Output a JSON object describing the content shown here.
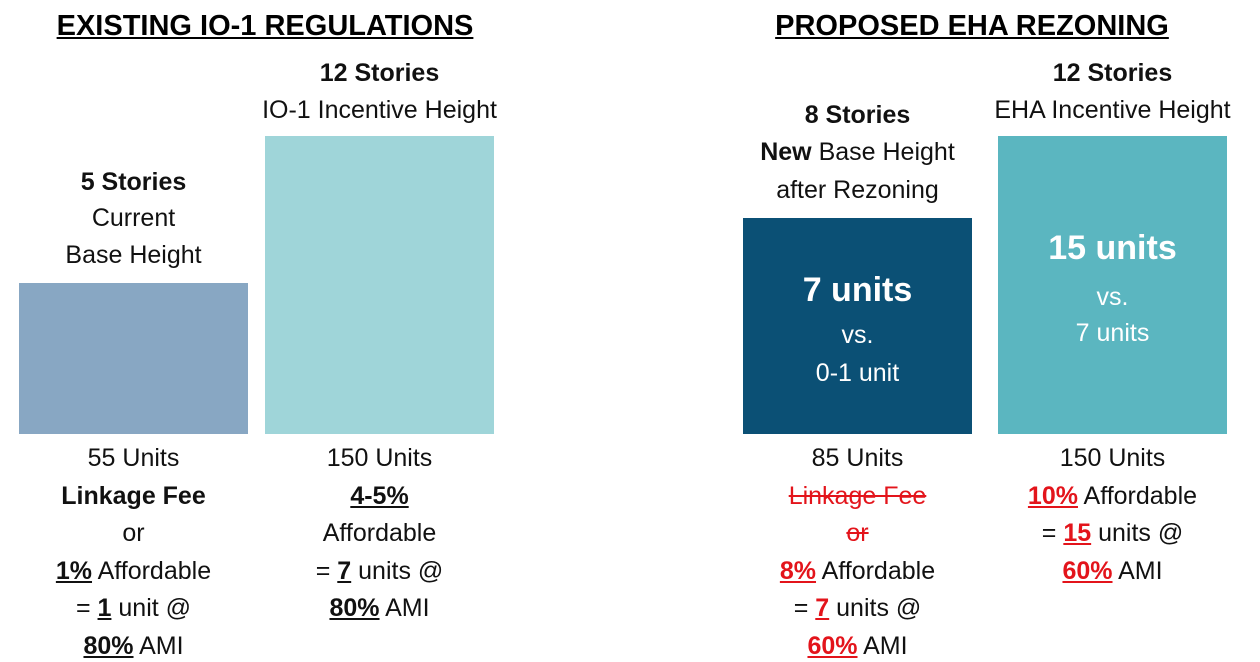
{
  "sections": [
    {
      "title": "EXISTING IO-1 REGULATIONS",
      "columns": [
        {
          "header": [
            [
              {
                "text": "5 Stories",
                "bold": true
              }
            ],
            [
              {
                "text": "Current"
              }
            ],
            [
              {
                "text": "Base Height"
              }
            ]
          ],
          "bar_text": [],
          "footer": [
            [
              {
                "text": "55 Units"
              }
            ],
            [
              {
                "text": "Linkage Fee",
                "bold": true
              }
            ],
            [
              {
                "text": "or"
              }
            ],
            [
              {
                "text": "1%",
                "bold": true,
                "underline": true
              },
              {
                "text": " Affordable"
              }
            ],
            [
              {
                "text": "= "
              },
              {
                "text": "1",
                "bold": true,
                "underline": true
              },
              {
                "text": " unit @"
              }
            ],
            [
              {
                "text": "80%",
                "bold": true,
                "underline": true
              },
              {
                "text": " AMI"
              }
            ]
          ]
        },
        {
          "header": [
            [
              {
                "text": "12 Stories",
                "bold": true
              }
            ],
            [
              {
                "text": "IO-1 Incentive Height"
              }
            ]
          ],
          "bar_text": [],
          "footer": [
            [
              {
                "text": "150 Units"
              }
            ],
            [
              {
                "text": "4-5%",
                "bold": true,
                "underline": true
              }
            ],
            [
              {
                "text": "Affordable"
              }
            ],
            [
              {
                "text": "= "
              },
              {
                "text": "7",
                "bold": true,
                "underline": true
              },
              {
                "text": " units @"
              }
            ],
            [
              {
                "text": "80%",
                "bold": true,
                "underline": true
              },
              {
                "text": " AMI"
              }
            ]
          ]
        }
      ]
    },
    {
      "title": "PROPOSED EHA REZONING",
      "columns": [
        {
          "header": [
            [
              {
                "text": "8 Stories",
                "bold": true
              }
            ],
            [
              {
                "text": "New",
                "bold": true
              },
              {
                "text": " Base Height"
              }
            ],
            [
              {
                "text": "after Rezoning"
              }
            ]
          ],
          "bar_text": [
            [
              {
                "text": "7 units"
              }
            ],
            [
              {
                "text": "vs."
              }
            ],
            [
              {
                "text": "0-1 unit"
              }
            ]
          ],
          "footer": [
            [
              {
                "text": "85 Units"
              }
            ],
            [
              {
                "text": "Linkage Fee",
                "red": true,
                "strike": true
              }
            ],
            [
              {
                "text": "or",
                "red": true,
                "strike": true
              }
            ],
            [
              {
                "text": "8%",
                "bold": true,
                "underline": true,
                "red": true
              },
              {
                "text": " Affordable"
              }
            ],
            [
              {
                "text": "= "
              },
              {
                "text": "7",
                "bold": true,
                "underline": true,
                "red": true
              },
              {
                "text": " units @"
              }
            ],
            [
              {
                "text": "60%",
                "bold": true,
                "underline": true,
                "red": true
              },
              {
                "text": " AMI"
              }
            ]
          ]
        },
        {
          "header": [
            [
              {
                "text": "12 Stories",
                "bold": true
              }
            ],
            [
              {
                "text": "EHA Incentive Height"
              }
            ]
          ],
          "bar_text": [
            [
              {
                "text": "15 units"
              }
            ],
            [
              {
                "text": "vs."
              }
            ],
            [
              {
                "text": "7 units"
              }
            ]
          ],
          "footer": [
            [
              {
                "text": "150 Units"
              }
            ],
            [
              {
                "text": "10%",
                "bold": true,
                "underline": true,
                "red": true
              },
              {
                "text": " Affordable"
              }
            ],
            [
              {
                "text": "= "
              },
              {
                "text": "15",
                "bold": true,
                "underline": true,
                "red": true
              },
              {
                "text": " units @"
              }
            ],
            [
              {
                "text": "60%",
                "bold": true,
                "underline": true,
                "red": true
              },
              {
                "text": " AMI"
              }
            ]
          ]
        }
      ]
    }
  ]
}
